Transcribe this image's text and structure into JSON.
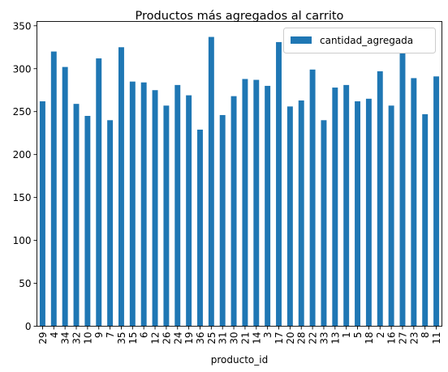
{
  "chart_data": {
    "type": "bar",
    "title": "Productos más agregados al carrito",
    "xlabel": "producto_id",
    "ylabel": "",
    "ylim": [
      0,
      355
    ],
    "yticks": [
      0,
      50,
      100,
      150,
      200,
      250,
      300,
      350
    ],
    "grid": false,
    "legend_position": "top-right",
    "categories": [
      "29",
      "4",
      "34",
      "32",
      "10",
      "9",
      "7",
      "35",
      "15",
      "6",
      "12",
      "26",
      "24",
      "19",
      "36",
      "25",
      "31",
      "30",
      "21",
      "14",
      "3",
      "17",
      "20",
      "28",
      "22",
      "33",
      "13",
      "1",
      "5",
      "18",
      "2",
      "16",
      "27",
      "23",
      "8",
      "11"
    ],
    "series": [
      {
        "name": "cantidad_agregada",
        "color": "#1f77b4",
        "values": [
          262,
          320,
          302,
          259,
          245,
          312,
          240,
          325,
          285,
          284,
          275,
          257,
          281,
          269,
          229,
          337,
          246,
          268,
          288,
          287,
          280,
          331,
          256,
          263,
          299,
          240,
          278,
          281,
          262,
          265,
          297,
          257,
          323,
          289,
          247,
          291
        ]
      }
    ]
  }
}
